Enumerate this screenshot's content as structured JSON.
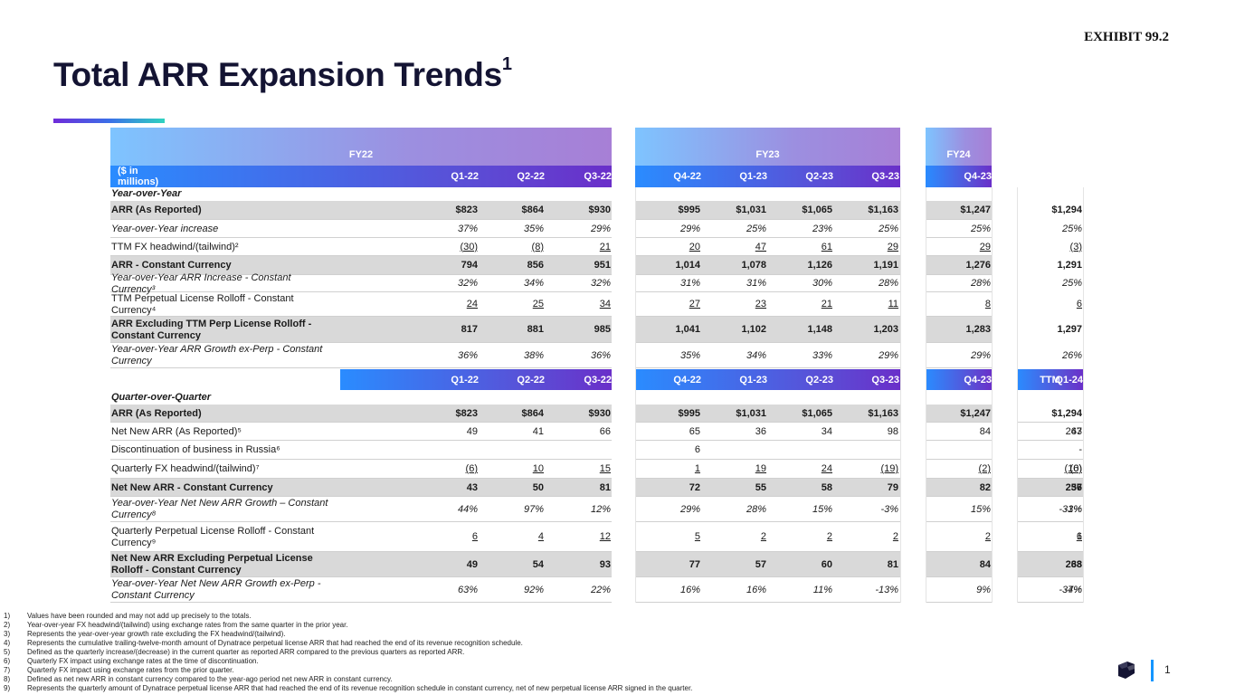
{
  "exhibit": "EXHIBIT 99.2",
  "title": "Total ARR Expansion Trends",
  "title_sup": "1",
  "fy_headers": [
    "FY22",
    "FY23",
    "FY24"
  ],
  "units_label": "($ in millions)",
  "quarters_yoy": [
    "Q1-22",
    "Q2-22",
    "Q3-22",
    "Q4-22",
    "Q1-23",
    "Q2-23",
    "Q3-23",
    "Q4-23",
    "Q1-24"
  ],
  "quarters_qoq": [
    "Q1-22",
    "Q2-22",
    "Q3-22",
    "Q4-22",
    "Q1-23",
    "Q2-23",
    "Q3-23",
    "Q4-23",
    "Q1-24",
    "TTM"
  ],
  "yoy": {
    "section": "Year-over-Year",
    "rows": [
      {
        "label": "ARR (As Reported)",
        "values": [
          "$823",
          "$864",
          "$930",
          "$995",
          "$1,031",
          "$1,065",
          "$1,163",
          "$1,247",
          "$1,294"
        ]
      },
      {
        "label": "Year-over-Year increase",
        "values": [
          "37%",
          "35%",
          "29%",
          "29%",
          "25%",
          "23%",
          "25%",
          "25%",
          "25%"
        ]
      },
      {
        "label": "TTM FX headwind/(tailwind)²",
        "values": [
          "(30)",
          "(8)",
          "21",
          "20",
          "47",
          "61",
          "29",
          "29",
          "(3)"
        ]
      },
      {
        "label": "ARR - Constant Currency",
        "values": [
          "794",
          "856",
          "951",
          "1,014",
          "1,078",
          "1,126",
          "1,191",
          "1,276",
          "1,291"
        ]
      },
      {
        "label": "Year-over-Year ARR Increase - Constant Currency³",
        "values": [
          "32%",
          "34%",
          "32%",
          "31%",
          "31%",
          "30%",
          "28%",
          "28%",
          "25%"
        ]
      },
      {
        "label": "TTM Perpetual License Rolloff - Constant Currency⁴",
        "values": [
          "24",
          "25",
          "34",
          "27",
          "23",
          "21",
          "11",
          "8",
          "6"
        ]
      },
      {
        "label": "ARR Excluding TTM Perp License Rolloff - Constant Currency",
        "values": [
          "817",
          "881",
          "985",
          "1,041",
          "1,102",
          "1,148",
          "1,203",
          "1,283",
          "1,297"
        ]
      },
      {
        "label": "Year-over-Year ARR Growth ex-Perp - Constant Currency",
        "values": [
          "36%",
          "38%",
          "36%",
          "35%",
          "34%",
          "33%",
          "29%",
          "29%",
          "26%"
        ]
      }
    ]
  },
  "qoq": {
    "section": "Quarter-over-Quarter",
    "rows": [
      {
        "label": "ARR (As Reported)",
        "values": [
          "$823",
          "$864",
          "$930",
          "$995",
          "$1,031",
          "$1,065",
          "$1,163",
          "$1,247",
          "$1,294",
          ""
        ]
      },
      {
        "label": "Net New ARR (As Reported)⁵",
        "values": [
          "49",
          "41",
          "66",
          "65",
          "36",
          "34",
          "98",
          "84",
          "47",
          "263"
        ]
      },
      {
        "label": "Discontinuation of business in Russia⁶",
        "values": [
          "",
          "",
          "",
          "6",
          "",
          "",
          "",
          "",
          "",
          "-"
        ]
      },
      {
        "label": "Quarterly FX headwind/(tailwind)⁷",
        "values": [
          "(6)",
          "10",
          "15",
          "1",
          "19",
          "24",
          "(19)",
          "(2)",
          "(10)",
          "(6)"
        ]
      },
      {
        "label": "Net New ARR - Constant Currency",
        "values": [
          "43",
          "50",
          "81",
          "72",
          "55",
          "58",
          "79",
          "82",
          "37",
          "256"
        ]
      },
      {
        "label": "Year-over-Year Net New ARR Growth – Constant Currency⁸",
        "values": [
          "44%",
          "97%",
          "12%",
          "29%",
          "28%",
          "15%",
          "-3%",
          "15%",
          "-33%",
          "-1%"
        ]
      },
      {
        "label": "Quarterly Perpetual License Rolloff - Constant Currency⁹",
        "values": [
          "6",
          "4",
          "12",
          "5",
          "2",
          "2",
          "2",
          "2",
          "1",
          "6"
        ]
      },
      {
        "label": "Net New ARR Excluding Perpetual License Rolloff - Constant Currency",
        "values": [
          "49",
          "54",
          "93",
          "77",
          "57",
          "60",
          "81",
          "84",
          "38",
          "263"
        ]
      },
      {
        "label": "Year-over-Year Net New ARR Growth ex-Perp - Constant Currency",
        "values": [
          "63%",
          "92%",
          "22%",
          "16%",
          "16%",
          "11%",
          "-13%",
          "9%",
          "-34%",
          "-7%"
        ]
      }
    ]
  },
  "footnotes": [
    {
      "k": "1)",
      "t": "Values have been rounded and may not add up precisely to the totals."
    },
    {
      "k": "2)",
      "t": "Year-over-year FX headwind/(tailwind) using exchange rates from the same quarter in the prior year."
    },
    {
      "k": "3)",
      "t": "Represents the year-over-year growth rate excluding the FX headwind/(tailwind)."
    },
    {
      "k": "4)",
      "t": "Represents the cumulative trailing-twelve-month amount of Dynatrace perpetual license ARR that had reached the end of its revenue recognition schedule."
    },
    {
      "k": "5)",
      "t": "Defined as the quarterly increase/(decrease) in the current quarter as reported ARR compared to the previous quarters as reported ARR."
    },
    {
      "k": "6)",
      "t": "Quarterly FX impact using exchange rates at the time of discontinuation."
    },
    {
      "k": "7)",
      "t": "Quarterly FX impact using exchange rates from the prior quarter."
    },
    {
      "k": "8)",
      "t": "Defined as net new ARR in constant currency compared to the year-ago period net new ARR in constant currency."
    },
    {
      "k": "9)",
      "t": "Represents the quarterly amount of Dynatrace perpetual license ARR that had reached the end of its revenue recognition schedule in constant currency, net of new perpetual license ARR signed in the quarter."
    }
  ],
  "page_number": "1",
  "colors": {
    "title": "#141433",
    "header_blue": "#1f8cff",
    "header_purple": "#6a2fc9",
    "shade": "#d9d9d9"
  }
}
